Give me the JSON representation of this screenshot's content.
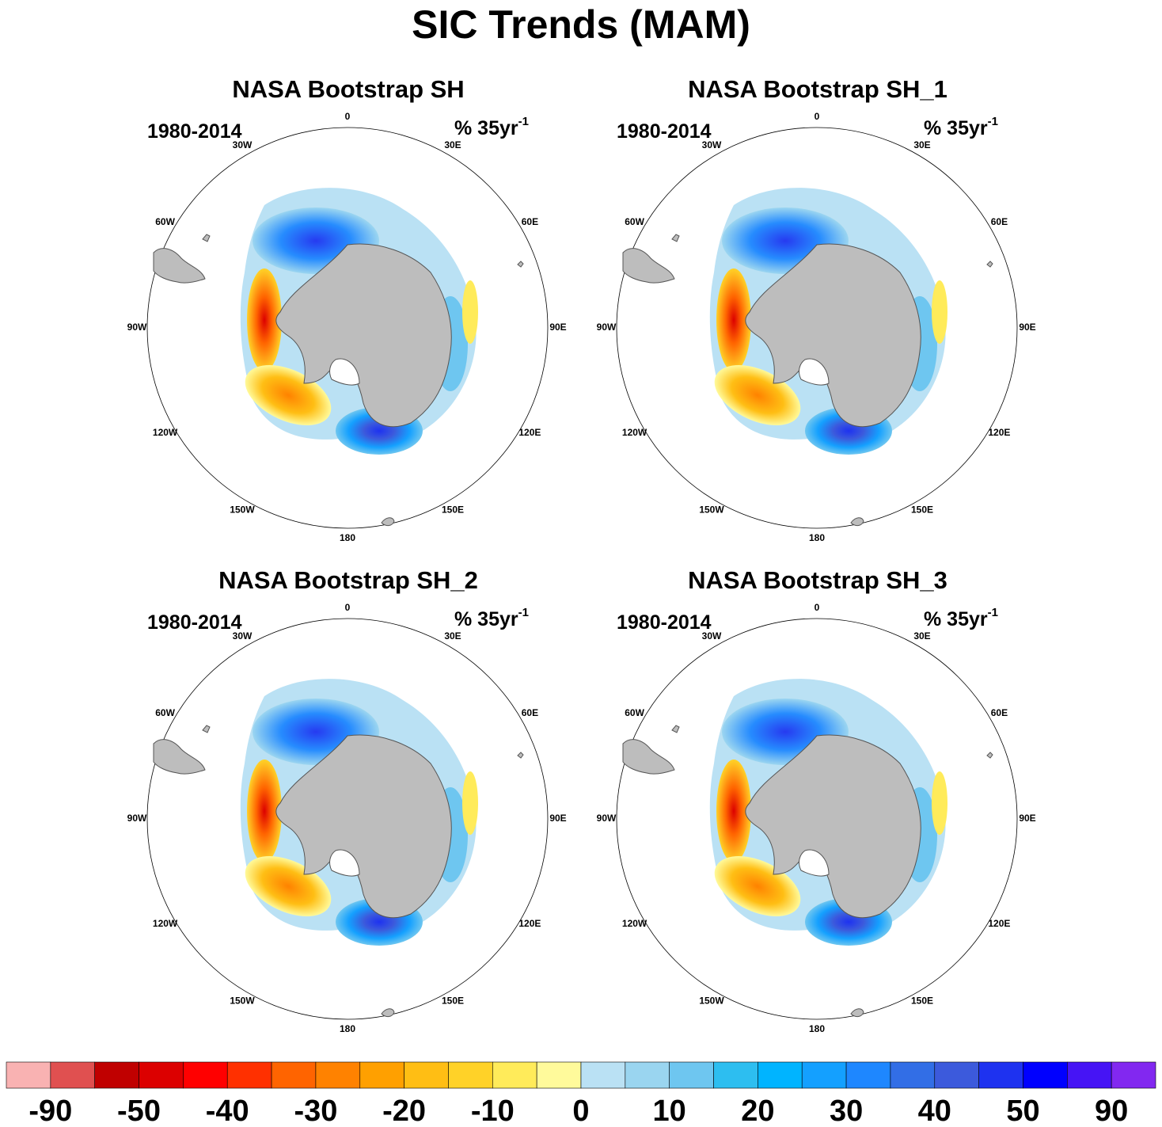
{
  "title": "SIC Trends (MAM)",
  "panels": [
    {
      "title": "NASA Bootstrap SH",
      "period": "1980-2014",
      "units_base": "% 35yr",
      "units_exp": "-1"
    },
    {
      "title": "NASA Bootstrap SH_1",
      "period": "1980-2014",
      "units_base": "% 35yr",
      "units_exp": "-1"
    },
    {
      "title": "NASA Bootstrap SH_2",
      "period": "1980-2014",
      "units_base": "% 35yr",
      "units_exp": "-1"
    },
    {
      "title": "NASA Bootstrap SH_3",
      "period": "1980-2014",
      "units_base": "% 35yr",
      "units_exp": "-1"
    }
  ],
  "longitude_labels": [
    "0",
    "30E",
    "60E",
    "90E",
    "120E",
    "150E",
    "180",
    "150W",
    "120W",
    "90W",
    "60W",
    "30W"
  ],
  "colorbar": {
    "colors": [
      "#f9b2b2",
      "#e05050",
      "#c00000",
      "#dc0000",
      "#ff0000",
      "#ff3000",
      "#ff6400",
      "#ff8200",
      "#ffa000",
      "#ffbe14",
      "#ffd228",
      "#ffeb5a",
      "#fffa9b",
      "#bae1f4",
      "#9ad5f0",
      "#6ec6f0",
      "#2dbef0",
      "#00b4ff",
      "#14a0ff",
      "#1e87ff",
      "#326ee6",
      "#3c5adc",
      "#1e32f0",
      "#0000ff",
      "#4614f5",
      "#8228f0"
    ],
    "labels": [
      "-90",
      "-50",
      "-40",
      "-30",
      "-20",
      "-10",
      "0",
      "10",
      "20",
      "30",
      "40",
      "50",
      "90"
    ]
  },
  "colors": {
    "land": "#bdbdbd",
    "background": "#ffffff"
  }
}
